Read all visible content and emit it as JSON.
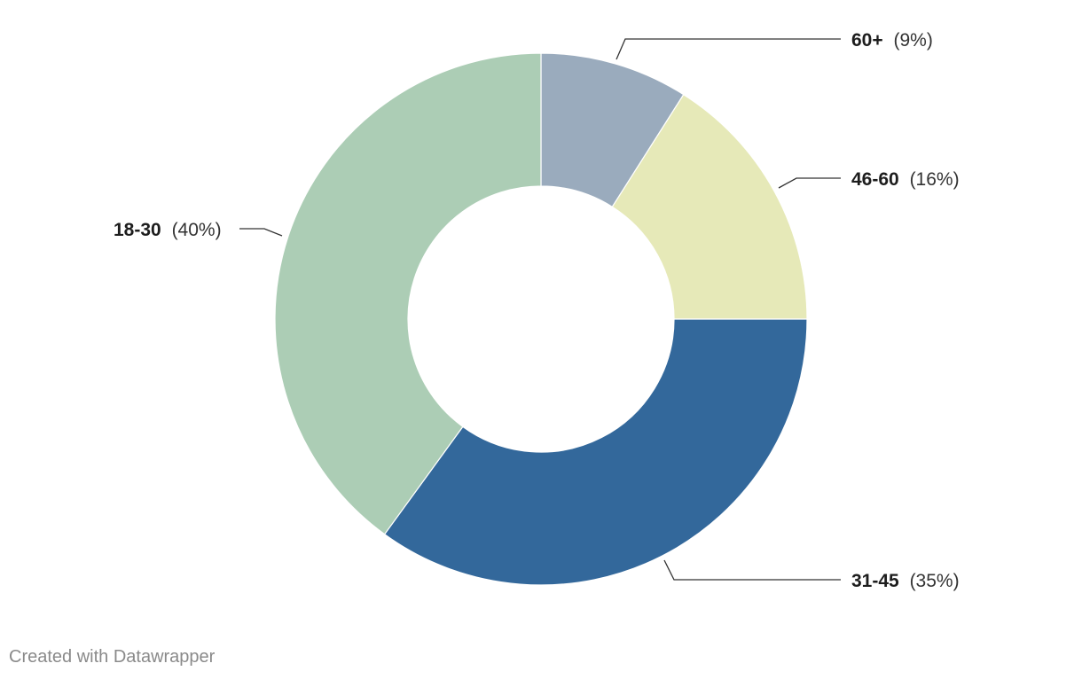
{
  "chart_data": {
    "type": "pie",
    "donut": true,
    "title": "",
    "categories": [
      "60+",
      "46-60",
      "31-45",
      "18-30"
    ],
    "values": [
      9,
      16,
      35,
      40
    ],
    "unit": "%",
    "colors": [
      "#9aabbd",
      "#e6e9b8",
      "#33689b",
      "#accdb5"
    ],
    "labels": [
      {
        "name": "60+",
        "pct": "(9%)"
      },
      {
        "name": "46-60",
        "pct": "(16%)"
      },
      {
        "name": "31-45",
        "pct": "(35%)"
      },
      {
        "name": "18-30",
        "pct": "(40%)"
      }
    ]
  },
  "footer": {
    "credit": "Created with Datawrapper"
  }
}
